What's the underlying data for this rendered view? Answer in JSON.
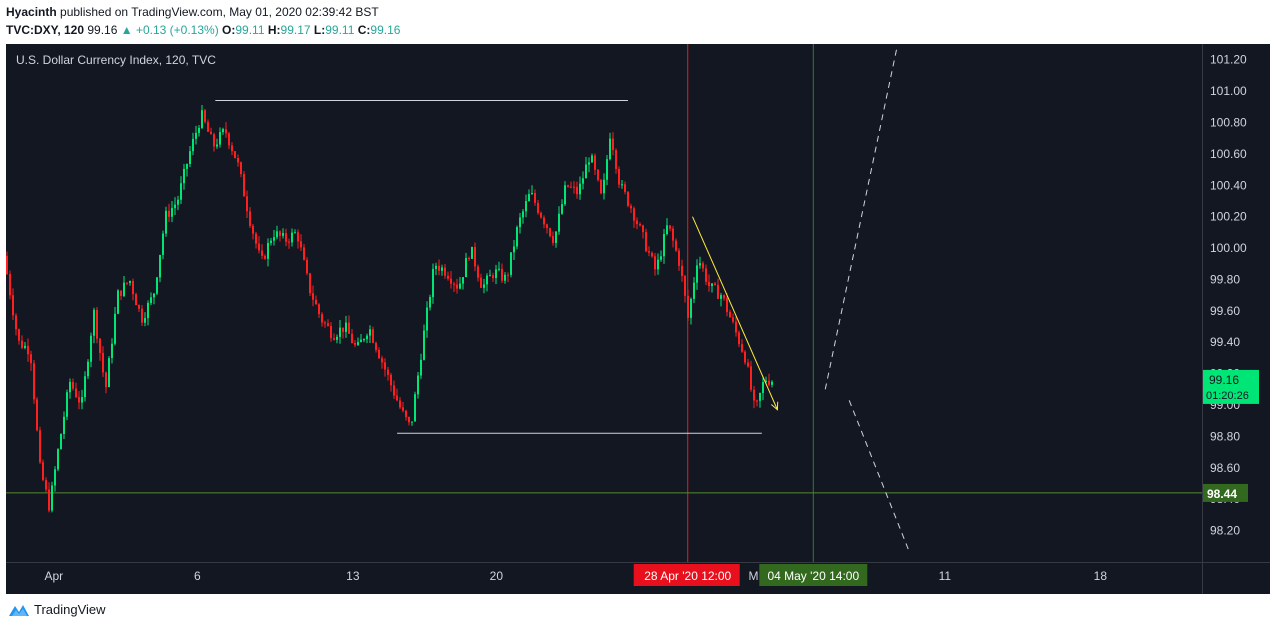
{
  "header": {
    "author": "Hyacinth",
    "published_text": "published on TradingView.com, May 01, 2020 02:39:42 BST",
    "symbol": "TVC:DXY, 120",
    "last": "99.16",
    "change": "▲ +0.13 (+0.13%)",
    "o_label": "O:",
    "o": "99.11",
    "h_label": "H:",
    "h": "99.17",
    "l_label": "L:",
    "l": "99.11",
    "c_label": "C:",
    "c": "99.16"
  },
  "footer": {
    "brand": "TradingView"
  },
  "colors": {
    "background": "#131722",
    "up": "#00e676",
    "down": "#ff1f1f",
    "price_tag": "#00e676",
    "level_tag": "#33691e",
    "red_marker": "#ff1010",
    "trend": "#ffeb3b"
  },
  "chart_data": {
    "type": "candlestick",
    "title": "U.S. Dollar Currency Index, 120, TVC",
    "xlabel": "",
    "ylabel": "",
    "ylim": [
      98.0,
      101.3
    ],
    "y_ticks": [
      "101.20",
      "101.00",
      "100.80",
      "100.60",
      "100.40",
      "100.20",
      "100.00",
      "99.80",
      "99.60",
      "99.40",
      "99.20",
      "99.00",
      "98.80",
      "98.60",
      "98.40",
      "98.20"
    ],
    "x_ticks": [
      "Apr",
      "6",
      "13",
      "20",
      "M",
      "11",
      "18"
    ],
    "x_tick_positions": [
      0.04,
      0.16,
      0.29,
      0.41,
      0.625,
      0.785,
      0.915
    ],
    "path": [
      [
        0.0,
        99.95
      ],
      [
        0.012,
        99.4
      ],
      [
        0.022,
        99.35
      ],
      [
        0.03,
        98.6
      ],
      [
        0.038,
        98.35
      ],
      [
        0.045,
        98.7
      ],
      [
        0.055,
        99.15
      ],
      [
        0.065,
        99.0
      ],
      [
        0.075,
        99.6
      ],
      [
        0.085,
        99.1
      ],
      [
        0.095,
        99.7
      ],
      [
        0.105,
        99.8
      ],
      [
        0.115,
        99.55
      ],
      [
        0.125,
        99.7
      ],
      [
        0.135,
        100.2
      ],
      [
        0.145,
        100.3
      ],
      [
        0.155,
        100.6
      ],
      [
        0.165,
        100.85
      ],
      [
        0.175,
        100.65
      ],
      [
        0.185,
        100.75
      ],
      [
        0.195,
        100.55
      ],
      [
        0.205,
        100.2
      ],
      [
        0.215,
        99.9
      ],
      [
        0.225,
        100.1
      ],
      [
        0.235,
        100.05
      ],
      [
        0.245,
        100.1
      ],
      [
        0.255,
        99.75
      ],
      [
        0.265,
        99.55
      ],
      [
        0.275,
        99.45
      ],
      [
        0.285,
        99.5
      ],
      [
        0.295,
        99.35
      ],
      [
        0.305,
        99.5
      ],
      [
        0.315,
        99.3
      ],
      [
        0.325,
        99.1
      ],
      [
        0.333,
        98.95
      ],
      [
        0.34,
        98.85
      ],
      [
        0.35,
        99.4
      ],
      [
        0.36,
        99.9
      ],
      [
        0.37,
        99.85
      ],
      [
        0.38,
        99.75
      ],
      [
        0.39,
        100.0
      ],
      [
        0.4,
        99.75
      ],
      [
        0.41,
        99.85
      ],
      [
        0.42,
        99.8
      ],
      [
        0.43,
        100.15
      ],
      [
        0.44,
        100.35
      ],
      [
        0.45,
        100.2
      ],
      [
        0.46,
        100.05
      ],
      [
        0.47,
        100.4
      ],
      [
        0.48,
        100.35
      ],
      [
        0.49,
        100.6
      ],
      [
        0.5,
        100.3
      ],
      [
        0.507,
        100.75
      ],
      [
        0.515,
        100.4
      ],
      [
        0.525,
        100.25
      ],
      [
        0.535,
        100.05
      ],
      [
        0.545,
        99.85
      ],
      [
        0.555,
        100.15
      ],
      [
        0.565,
        99.9
      ],
      [
        0.572,
        99.55
      ],
      [
        0.58,
        99.95
      ],
      [
        0.59,
        99.75
      ],
      [
        0.6,
        99.7
      ],
      [
        0.61,
        99.5
      ],
      [
        0.62,
        99.3
      ],
      [
        0.628,
        98.95
      ],
      [
        0.636,
        99.17
      ],
      [
        0.64,
        99.16
      ]
    ],
    "last_price": "99.16",
    "countdown": "01:20:26",
    "level_price": "98.44",
    "date_tags": [
      "28 Apr '20   12:00",
      "04 May '20   14:00"
    ],
    "red_marker_x": 0.57,
    "green_marker_x": 0.675,
    "resistance": {
      "x0": 0.175,
      "x1": 0.52,
      "y": 100.94
    },
    "support": {
      "x0": 0.327,
      "x1": 0.632,
      "y": 98.82
    },
    "trendline": {
      "x0": 0.574,
      "y0": 100.2,
      "x1": 0.645,
      "y1": 98.97
    },
    "projection_up": {
      "x0": 0.685,
      "y0": 99.1,
      "x1": 0.745,
      "y1": 101.28
    },
    "projection_down": {
      "x0": 0.705,
      "y0": 99.03,
      "x1": 0.755,
      "y1": 98.07
    }
  }
}
